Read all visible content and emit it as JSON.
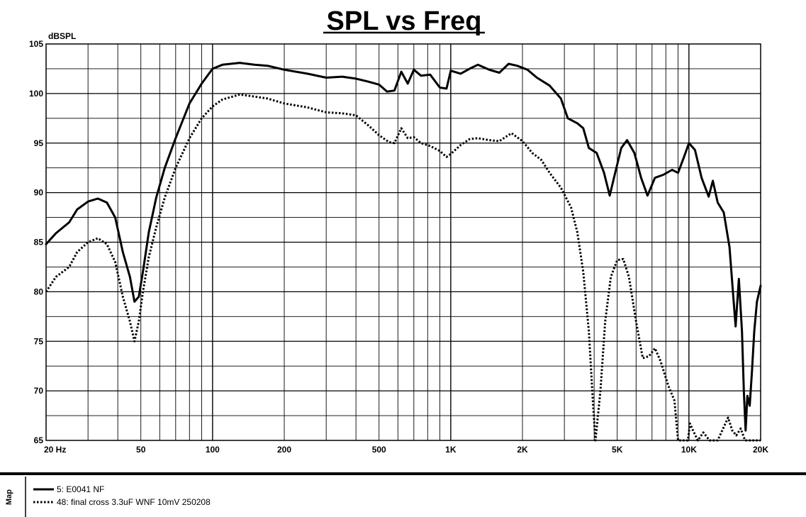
{
  "chart_data": {
    "type": "line",
    "title": "SPL vs Freq",
    "ylabel": "dBSPL",
    "xscale": "log",
    "xlim": [
      20,
      20000
    ],
    "ylim": [
      65,
      105
    ],
    "grid": true,
    "y_ticks": [
      {
        "value": 105,
        "label": "105"
      },
      {
        "value": 100,
        "label": "100"
      },
      {
        "value": 95,
        "label": "95"
      },
      {
        "value": 90,
        "label": "90"
      },
      {
        "value": 85,
        "label": "85"
      },
      {
        "value": 80,
        "label": "80"
      },
      {
        "value": 75,
        "label": "75"
      },
      {
        "value": 70,
        "label": "70"
      },
      {
        "value": 65,
        "label": "65"
      }
    ],
    "x_ticks": [
      {
        "value": 20,
        "label": "20  Hz"
      },
      {
        "value": 50,
        "label": "50"
      },
      {
        "value": 100,
        "label": "100"
      },
      {
        "value": 200,
        "label": "200"
      },
      {
        "value": 500,
        "label": "500"
      },
      {
        "value": 1000,
        "label": "1K"
      },
      {
        "value": 2000,
        "label": "2K"
      },
      {
        "value": 5000,
        "label": "5K"
      },
      {
        "value": 10000,
        "label": "10K"
      },
      {
        "value": 20000,
        "label": "20K"
      }
    ],
    "series": [
      {
        "name": "5: E0041 NF",
        "style": "solid",
        "color": "#000000",
        "points": [
          [
            20,
            84.8
          ],
          [
            22,
            85.9
          ],
          [
            25,
            87.0
          ],
          [
            27,
            88.3
          ],
          [
            30,
            89.1
          ],
          [
            33,
            89.4
          ],
          [
            36,
            89.0
          ],
          [
            39,
            87.5
          ],
          [
            42,
            84.0
          ],
          [
            45,
            81.5
          ],
          [
            47,
            79.0
          ],
          [
            49,
            79.5
          ],
          [
            51,
            82.0
          ],
          [
            54,
            86.0
          ],
          [
            58,
            89.5
          ],
          [
            63,
            92.5
          ],
          [
            70,
            95.5
          ],
          [
            80,
            99.0
          ],
          [
            90,
            101.0
          ],
          [
            100,
            102.5
          ],
          [
            110,
            102.9
          ],
          [
            130,
            103.1
          ],
          [
            150,
            102.9
          ],
          [
            170,
            102.8
          ],
          [
            200,
            102.4
          ],
          [
            250,
            102.0
          ],
          [
            300,
            101.6
          ],
          [
            350,
            101.7
          ],
          [
            400,
            101.5
          ],
          [
            450,
            101.2
          ],
          [
            500,
            100.9
          ],
          [
            540,
            100.2
          ],
          [
            580,
            100.3
          ],
          [
            620,
            102.2
          ],
          [
            660,
            101.0
          ],
          [
            700,
            102.4
          ],
          [
            750,
            101.8
          ],
          [
            820,
            101.9
          ],
          [
            900,
            100.6
          ],
          [
            960,
            100.5
          ],
          [
            1000,
            102.3
          ],
          [
            1100,
            102.0
          ],
          [
            1200,
            102.5
          ],
          [
            1300,
            102.9
          ],
          [
            1450,
            102.4
          ],
          [
            1600,
            102.1
          ],
          [
            1750,
            103.0
          ],
          [
            1900,
            102.8
          ],
          [
            2100,
            102.4
          ],
          [
            2300,
            101.6
          ],
          [
            2600,
            100.8
          ],
          [
            2900,
            99.5
          ],
          [
            3100,
            97.5
          ],
          [
            3400,
            97.0
          ],
          [
            3600,
            96.5
          ],
          [
            3800,
            94.5
          ],
          [
            4100,
            94.0
          ],
          [
            4400,
            92.0
          ],
          [
            4650,
            89.7
          ],
          [
            4900,
            92.0
          ],
          [
            5200,
            94.5
          ],
          [
            5500,
            95.3
          ],
          [
            5900,
            94.0
          ],
          [
            6300,
            91.5
          ],
          [
            6700,
            89.7
          ],
          [
            7200,
            91.5
          ],
          [
            7800,
            91.8
          ],
          [
            8500,
            92.3
          ],
          [
            9000,
            92.0
          ],
          [
            9500,
            93.5
          ],
          [
            10000,
            95.0
          ],
          [
            10600,
            94.3
          ],
          [
            11300,
            91.5
          ],
          [
            12100,
            89.6
          ],
          [
            12600,
            91.2
          ],
          [
            13200,
            89.0
          ],
          [
            14000,
            88.0
          ],
          [
            14800,
            84.5
          ],
          [
            15300,
            80.0
          ],
          [
            15700,
            76.5
          ],
          [
            16200,
            81.3
          ],
          [
            16700,
            76.0
          ],
          [
            17000,
            70.0
          ],
          [
            17300,
            66.0
          ],
          [
            17600,
            69.5
          ],
          [
            18000,
            68.5
          ],
          [
            18400,
            72.0
          ],
          [
            18800,
            76.0
          ],
          [
            19300,
            79.0
          ],
          [
            20000,
            80.6
          ]
        ]
      },
      {
        "name": "48: final cross 3.3uF WNF 10mV 250208",
        "style": "dotted",
        "color": "#000000",
        "points": [
          [
            20,
            80.0
          ],
          [
            22,
            81.5
          ],
          [
            25,
            82.5
          ],
          [
            27,
            84.0
          ],
          [
            30,
            85.0
          ],
          [
            33,
            85.4
          ],
          [
            36,
            84.8
          ],
          [
            39,
            83.0
          ],
          [
            42,
            79.5
          ],
          [
            45,
            77.0
          ],
          [
            47,
            75.0
          ],
          [
            49,
            77.0
          ],
          [
            51,
            80.0
          ],
          [
            54,
            83.5
          ],
          [
            58,
            86.5
          ],
          [
            63,
            89.5
          ],
          [
            70,
            92.5
          ],
          [
            80,
            95.5
          ],
          [
            90,
            97.5
          ],
          [
            100,
            98.7
          ],
          [
            110,
            99.4
          ],
          [
            130,
            99.9
          ],
          [
            150,
            99.7
          ],
          [
            170,
            99.5
          ],
          [
            200,
            99.0
          ],
          [
            250,
            98.6
          ],
          [
            300,
            98.1
          ],
          [
            350,
            98.0
          ],
          [
            400,
            97.8
          ],
          [
            450,
            96.8
          ],
          [
            500,
            95.8
          ],
          [
            550,
            95.1
          ],
          [
            580,
            95.0
          ],
          [
            620,
            96.5
          ],
          [
            660,
            95.5
          ],
          [
            700,
            95.6
          ],
          [
            750,
            95.0
          ],
          [
            820,
            94.7
          ],
          [
            900,
            94.2
          ],
          [
            960,
            93.6
          ],
          [
            1000,
            93.9
          ],
          [
            1100,
            94.8
          ],
          [
            1200,
            95.4
          ],
          [
            1300,
            95.5
          ],
          [
            1450,
            95.3
          ],
          [
            1600,
            95.2
          ],
          [
            1800,
            96.0
          ],
          [
            2000,
            95.2
          ],
          [
            2200,
            94.0
          ],
          [
            2400,
            93.3
          ],
          [
            2600,
            92.0
          ],
          [
            2900,
            90.5
          ],
          [
            3200,
            88.5
          ],
          [
            3400,
            86.0
          ],
          [
            3600,
            82.0
          ],
          [
            3800,
            76.0
          ],
          [
            3950,
            69.0
          ],
          [
            4050,
            65.0
          ],
          [
            4250,
            70.0
          ],
          [
            4450,
            77.0
          ],
          [
            4700,
            81.5
          ],
          [
            5000,
            83.2
          ],
          [
            5300,
            83.3
          ],
          [
            5600,
            81.5
          ],
          [
            6000,
            77.0
          ],
          [
            6400,
            73.3
          ],
          [
            6800,
            73.5
          ],
          [
            7200,
            74.3
          ],
          [
            7600,
            73.0
          ],
          [
            8200,
            70.5
          ],
          [
            8700,
            69.0
          ],
          [
            9000,
            65.0
          ],
          [
            9600,
            65.0
          ],
          [
            9900,
            65.0
          ],
          [
            10100,
            66.7
          ],
          [
            10400,
            66.0
          ],
          [
            10900,
            65.0
          ],
          [
            11500,
            65.8
          ],
          [
            12200,
            65.0
          ],
          [
            13200,
            65.0
          ],
          [
            14100,
            66.5
          ],
          [
            14600,
            67.3
          ],
          [
            15200,
            66.0
          ],
          [
            15800,
            65.5
          ],
          [
            16500,
            66.2
          ],
          [
            17200,
            65.0
          ],
          [
            18000,
            65.0
          ],
          [
            19000,
            65.0
          ],
          [
            20000,
            65.0
          ]
        ]
      }
    ]
  },
  "legend": {
    "map_label": "Map",
    "items": [
      {
        "label": "5: E0041 NF",
        "style": "solid"
      },
      {
        "label": "48: final cross 3.3uF WNF 10mV 250208",
        "style": "dotted"
      }
    ]
  }
}
